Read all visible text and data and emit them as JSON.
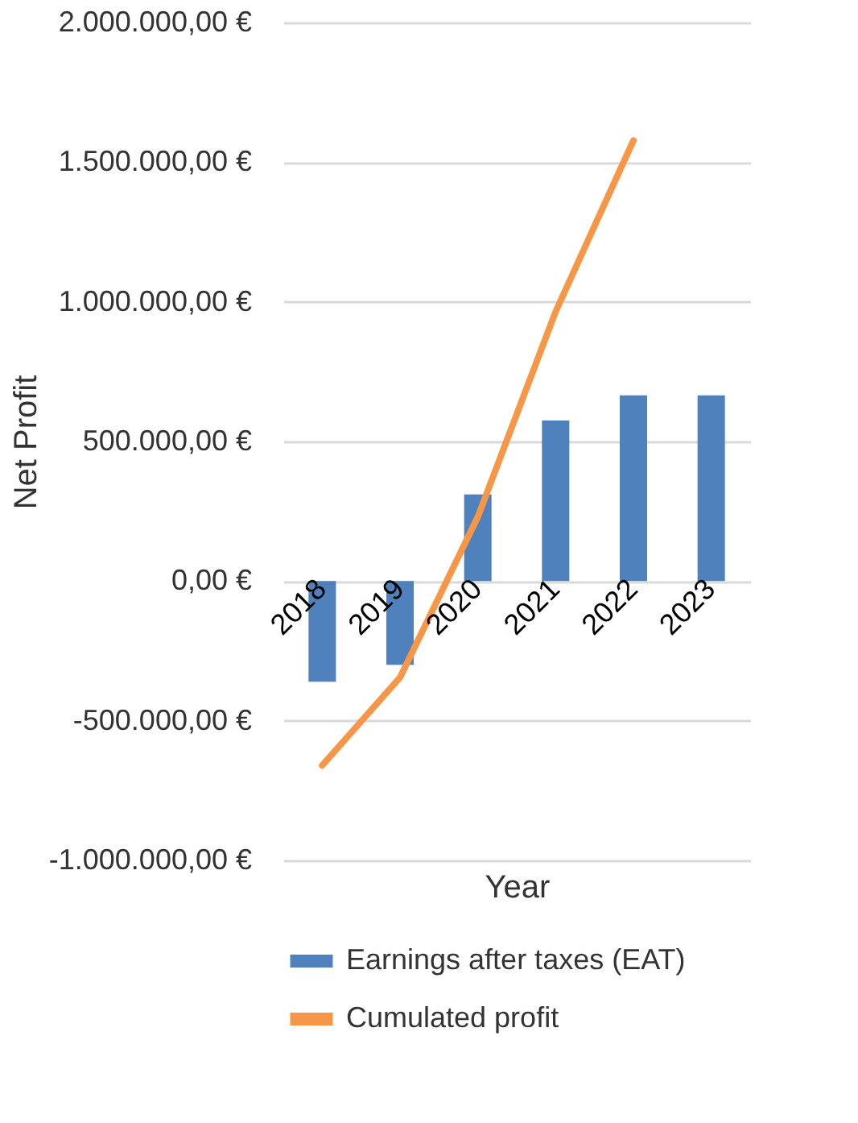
{
  "chart_data": {
    "type": "bar",
    "xlabel": "Year",
    "ylabel": "Net Profit",
    "categories": [
      "2018",
      "2019",
      "2020",
      "2021",
      "2022",
      "2023"
    ],
    "series": [
      {
        "name": "Earnings after taxes (EAT)",
        "color": "#4f81bd",
        "values": [
          -360000,
          -300000,
          310000,
          575000,
          665000,
          665000
        ]
      },
      {
        "name": "Cumulated profit",
        "color": "#f79646",
        "type": "line",
        "values": [
          -660000,
          -345000,
          230000,
          965000,
          1578000,
          null
        ]
      }
    ],
    "ylim": [
      -1000000,
      2000000
    ],
    "yticks": [
      {
        "value": -1000000,
        "label": "-1.000.000,00 €"
      },
      {
        "value": -500000,
        "label": "-500.000,00 €"
      },
      {
        "value": 0,
        "label": "0,00 €"
      },
      {
        "value": 500000,
        "label": "500.000,00 €"
      },
      {
        "value": 1000000,
        "label": "1.000.000,00 €"
      },
      {
        "value": 1500000,
        "label": "1.500.000,00 €"
      },
      {
        "value": 2000000,
        "label": "2.000.000,00 €"
      }
    ],
    "grid": "y",
    "legend": "bottom"
  }
}
